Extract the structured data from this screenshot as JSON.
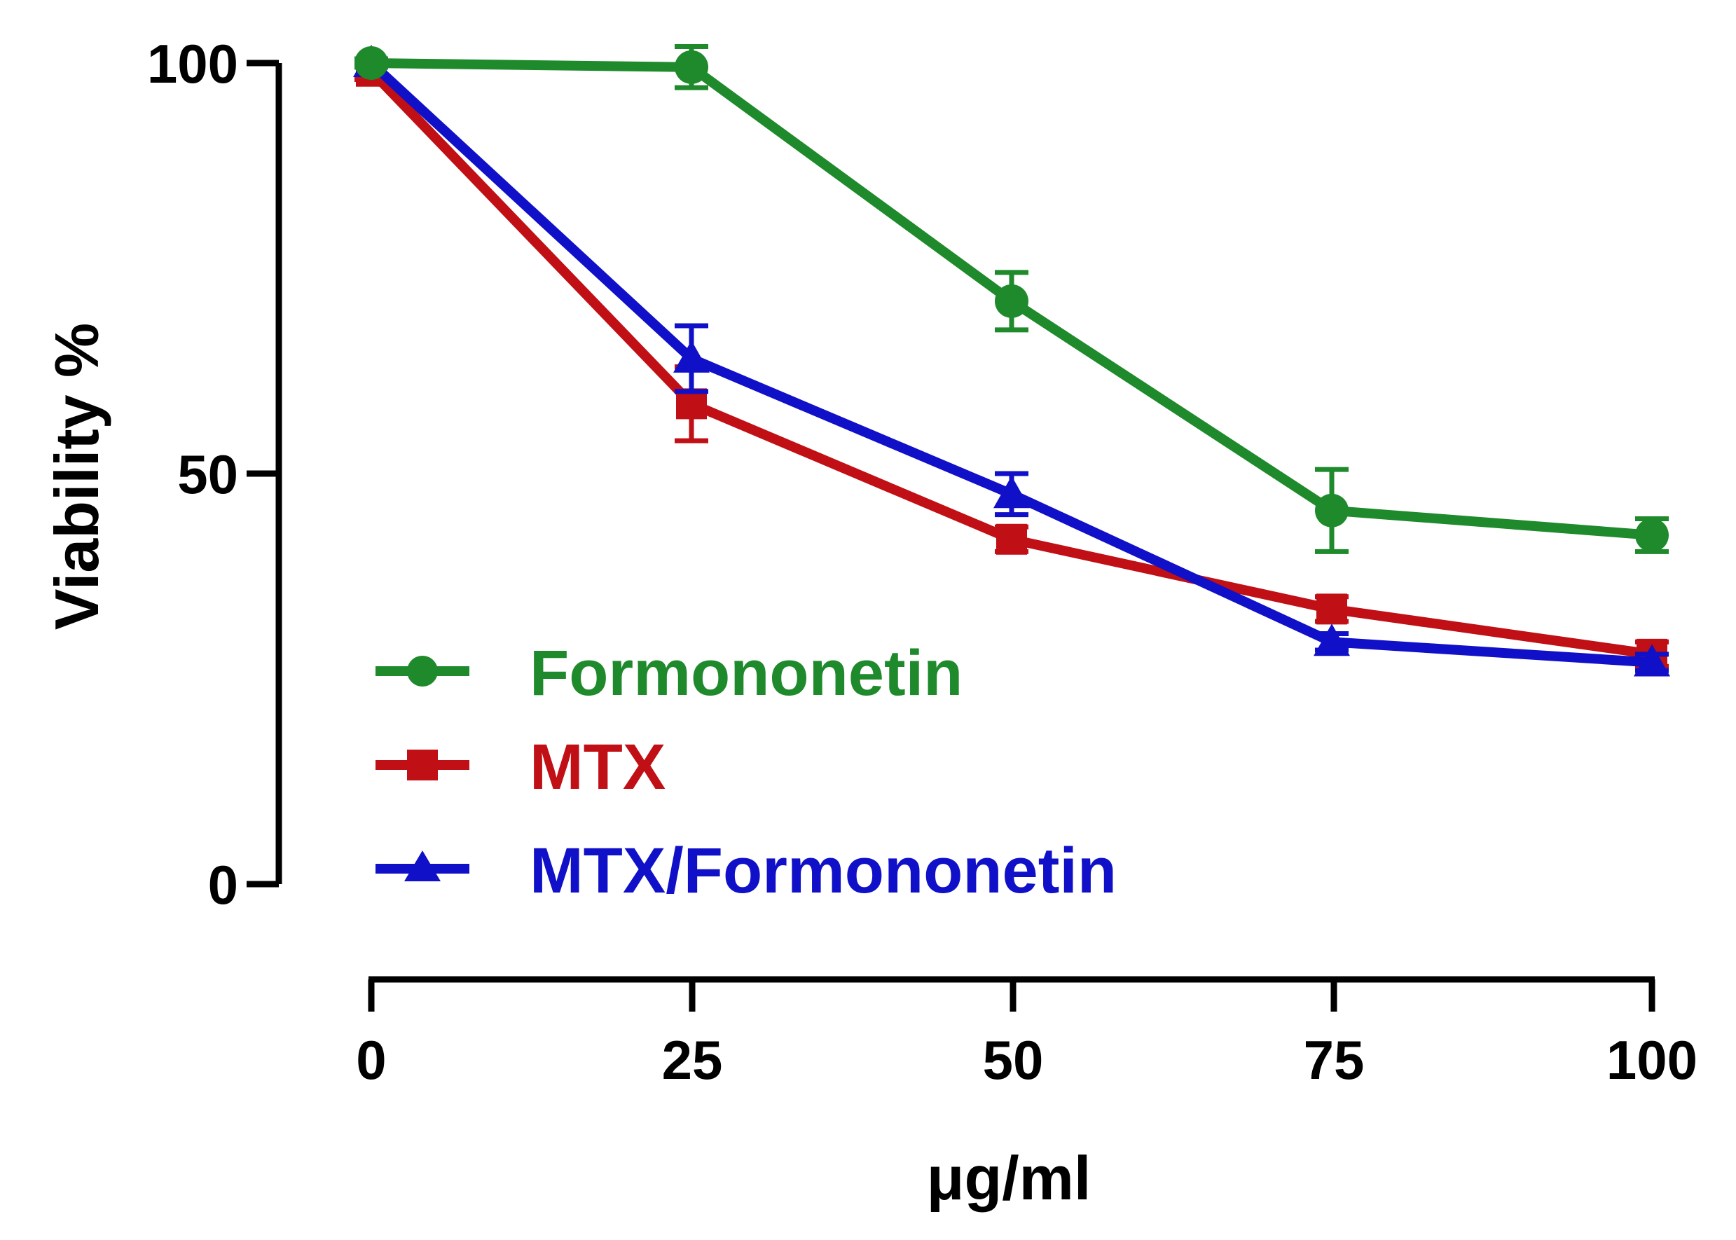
{
  "chart_data": {
    "type": "line",
    "title": "",
    "xlabel": "μg/ml",
    "ylabel": "Viability %",
    "x": [
      0,
      25,
      50,
      75,
      100
    ],
    "xticks": [
      "0",
      "25",
      "50",
      "75",
      "100"
    ],
    "yticks": [
      "0",
      "50",
      "100"
    ],
    "xlim": [
      0,
      100
    ],
    "ylim": [
      0,
      100
    ],
    "legend_position": "lower-left",
    "series": [
      {
        "name": "Formononetin",
        "color": "#1e8a2c",
        "marker": "circle",
        "values": [
          100,
          99.5,
          71,
          45.5,
          42.5
        ],
        "errors": [
          0.5,
          2.5,
          3.5,
          5,
          2
        ]
      },
      {
        "name": "MTX",
        "color": "#c00f15",
        "marker": "square",
        "values": [
          99,
          58.5,
          42,
          33.5,
          28
        ],
        "errors": [
          1,
          4.5,
          1.5,
          1.5,
          1.5
        ]
      },
      {
        "name": "MTX/Formononetin",
        "color": "#1010c8",
        "marker": "triangle",
        "values": [
          100,
          64,
          47.5,
          29.5,
          27
        ],
        "errors": [
          0.5,
          4,
          2.5,
          1,
          1
        ]
      }
    ]
  }
}
